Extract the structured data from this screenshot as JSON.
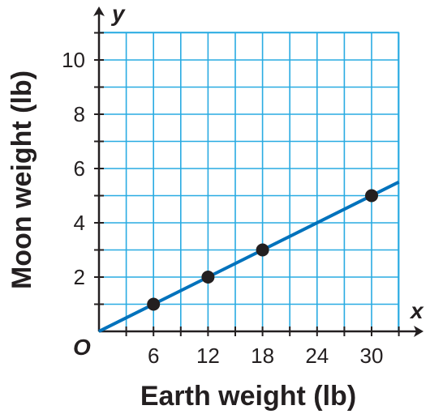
{
  "chart_data": {
    "type": "line",
    "xlabel": "Earth weight (lb)",
    "ylabel": "Moon weight (lb)",
    "x_axis_var": "x",
    "y_axis_var": "y",
    "origin_label": "O",
    "xlim": [
      0,
      33
    ],
    "ylim": [
      0,
      11
    ],
    "x_ticks": [
      "6",
      "12",
      "18",
      "24",
      "30"
    ],
    "y_ticks": [
      "2",
      "4",
      "6",
      "8",
      "10"
    ],
    "x_tick_values": [
      6,
      12,
      18,
      24,
      30
    ],
    "y_tick_values": [
      2,
      4,
      6,
      8,
      10
    ],
    "grid": true,
    "line": {
      "slope": 0.1667,
      "x_start": 0,
      "x_end": 33
    },
    "points": [
      {
        "x": 6,
        "y": 1
      },
      {
        "x": 12,
        "y": 2
      },
      {
        "x": 18,
        "y": 3
      },
      {
        "x": 30,
        "y": 5
      }
    ],
    "colors": {
      "grid": "#29abe2",
      "line": "#0072bc",
      "axis": "#231f20",
      "point": "#231f20"
    }
  }
}
